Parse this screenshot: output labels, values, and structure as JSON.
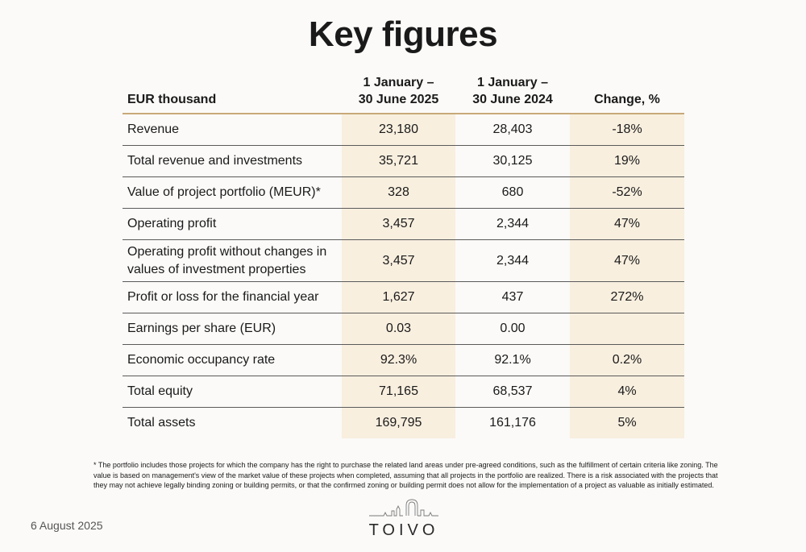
{
  "title": "Key figures",
  "table": {
    "headers": [
      "EUR thousand",
      "1 January – 30 June 2025",
      "1 January – 30 June 2024",
      "Change, %"
    ],
    "header_lines": [
      [
        "EUR thousand"
      ],
      [
        "1 January –",
        "30 June 2025"
      ],
      [
        "1 January –",
        "30 June 2024"
      ],
      [
        "Change, %"
      ]
    ],
    "rows": [
      {
        "label": "Revenue",
        "v2025": "23,180",
        "v2024": "28,403",
        "change": "-18%"
      },
      {
        "label": "Total revenue and investments",
        "v2025": "35,721",
        "v2024": "30,125",
        "change": "19%"
      },
      {
        "label": "Value of project portfolio (MEUR)*",
        "v2025": "328",
        "v2024": "680",
        "change": "-52%"
      },
      {
        "label": "Operating profit",
        "v2025": "3,457",
        "v2024": "2,344",
        "change": "47%"
      },
      {
        "label": "Operating profit without changes in values of investment properties",
        "v2025": "3,457",
        "v2024": "2,344",
        "change": "47%"
      },
      {
        "label": "Profit or loss for the financial year",
        "v2025": "1,627",
        "v2024": "437",
        "change": "272%"
      },
      {
        "label": "Earnings per share (EUR)",
        "v2025": "0.03",
        "v2024": "0.00",
        "change": ""
      },
      {
        "label": "Economic occupancy rate",
        "v2025": "92.3%",
        "v2024": "92.1%",
        "change": "0.2%"
      },
      {
        "label": "Total equity",
        "v2025": "71,165",
        "v2024": "68,537",
        "change": "4%"
      },
      {
        "label": "Total assets",
        "v2025": "169,795",
        "v2024": "161,176",
        "change": "5%"
      }
    ]
  },
  "footnote": "* The portfolio includes those projects for which the company has the right to purchase the related land areas under pre-agreed conditions, such as the fulfillment of certain criteria like zoning. The value is based on management's view of the market value of these projects when completed, assuming that all projects in the portfolio are realized. There is a risk associated with the projects that they may not achieve legally binding zoning or building permits, or that the confirmed zoning or building permit does not allow for the implementation of a project as valuable as initially estimated.",
  "date": "6 August 2025",
  "logo": {
    "text": "TOIVO",
    "icon": "skyline-icon"
  },
  "colors": {
    "accent": "#c8a97a",
    "highlight": "#f8efdf",
    "background": "#fbfaf8"
  }
}
